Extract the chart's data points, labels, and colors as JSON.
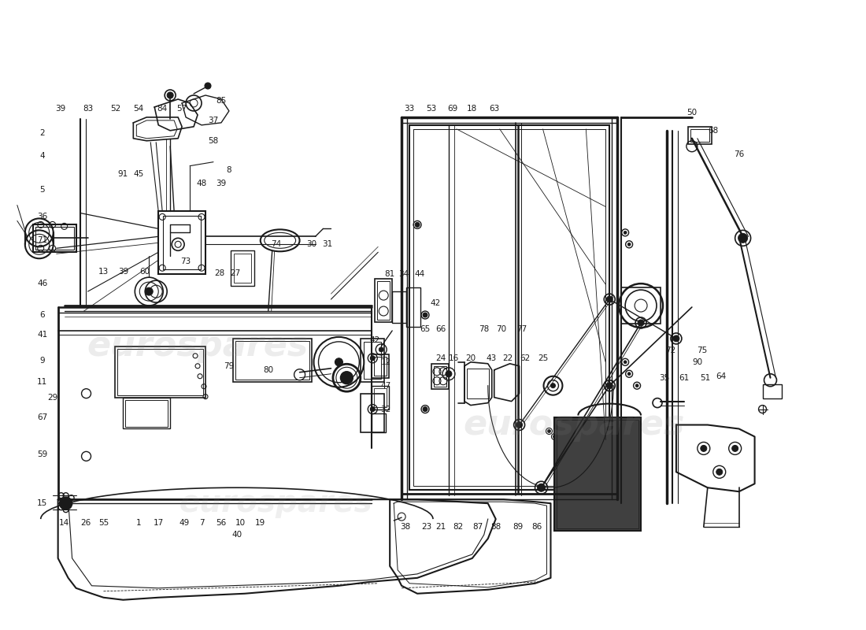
{
  "bg_color": "#ffffff",
  "line_color": "#1a1a1a",
  "text_color": "#1a1a1a",
  "watermark1": "eurospares",
  "watermark2": "eurospares",
  "figsize": [
    11.0,
    8.0
  ],
  "dpi": 100
}
